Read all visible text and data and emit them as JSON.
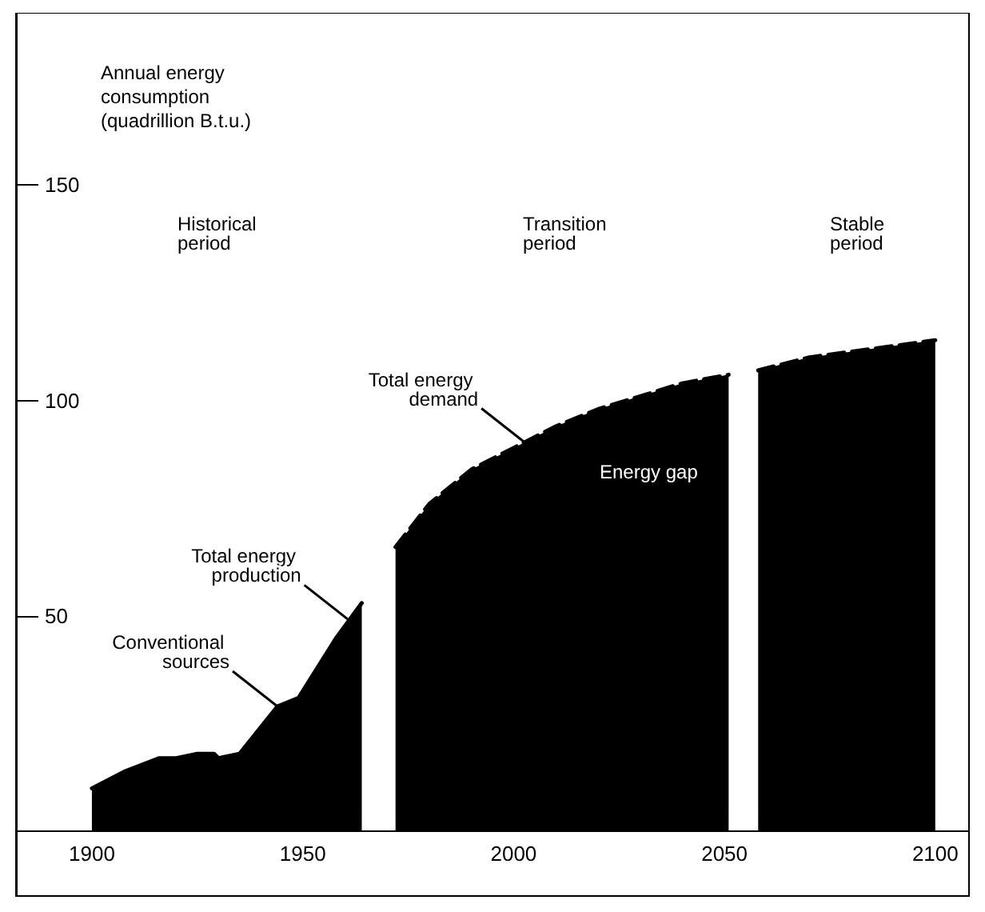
{
  "chart_data": {
    "type": "area",
    "ylabel": "Annual energy consumption (quadrillion B.t.u.)",
    "xlim": [
      1882,
      2108
    ],
    "xticks": [
      1900,
      1950,
      2000,
      2050,
      2100
    ],
    "ylim": [
      -15,
      190
    ],
    "yticks": [
      50,
      100,
      150
    ],
    "grid": false,
    "marker": "none",
    "series": [
      {
        "color": "#000000",
        "x": [
          1900,
          1908,
          1916,
          1920,
          1925,
          1929,
          1930,
          1935,
          1944,
          1949,
          1958,
          1964
        ],
        "values": [
          10,
          14,
          17,
          17,
          18,
          18,
          17,
          18,
          29,
          31,
          45,
          53
        ]
      },
      {
        "color": "#000000",
        "line_style": "dashed",
        "x": [
          1972,
          1980,
          1990,
          2000,
          2010,
          2020,
          2030,
          2040,
          2051,
          2054,
          2058,
          2070,
          2085,
          2100
        ],
        "values": [
          66,
          76,
          84,
          89,
          94,
          98,
          101,
          104,
          106,
          null,
          107,
          110,
          112,
          114
        ]
      }
    ],
    "annotations": [
      "Historical period",
      "Transition period",
      "Stable period",
      "Energy gap",
      {
        "text": "Total energy demand",
        "x": 2003,
        "y": 90
      },
      {
        "text": "Total energy production",
        "x": 1961,
        "y": 49
      },
      {
        "text": "Conventional sources",
        "x": 1944,
        "y": 29
      }
    ]
  }
}
